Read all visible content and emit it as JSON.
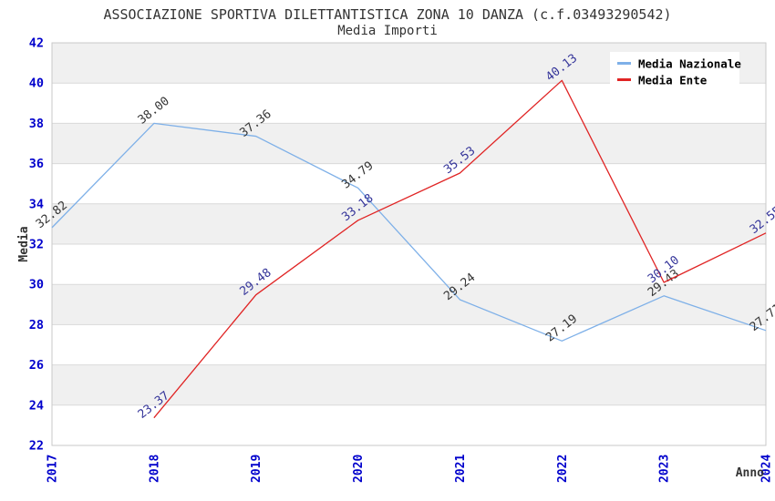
{
  "header": {
    "title": "ASSOCIAZIONE SPORTIVA DILETTANTISTICA ZONA 10 DANZA (c.f.03493290542)",
    "subtitle": "Media Importi"
  },
  "colors": {
    "title_text": "#333333",
    "tick_text": "#0000cc",
    "axis_title_text": "#333333",
    "band_gray": "#f0f0f0",
    "band_white": "#ffffff",
    "gridline": "#d9d9d9",
    "plot_border": "#c9c9c9",
    "legend_bg": "#ffffff"
  },
  "chart_data": {
    "type": "line",
    "title": "ASSOCIAZIONE SPORTIVA DILETTANTISTICA ZONA 10 DANZA (c.f.03493290542)",
    "subtitle": "Media Importi",
    "xlabel": "Anno",
    "ylabel": "Media",
    "x": [
      2017,
      2018,
      2019,
      2020,
      2021,
      2022,
      2023,
      2024
    ],
    "xlim": [
      2017,
      2024
    ],
    "ylim": [
      22,
      42
    ],
    "ytick_step": 2,
    "yticks": [
      22,
      24,
      26,
      28,
      30,
      32,
      34,
      36,
      38,
      40,
      42
    ],
    "grid": "horizontal-bands-alternating",
    "legend_position": "top-right",
    "series": [
      {
        "name": "Media Nazionale",
        "color": "#7eb0e8",
        "label_color": "#333333",
        "x": [
          2017,
          2018,
          2019,
          2020,
          2021,
          2022,
          2023,
          2024
        ],
        "values": [
          32.82,
          38.0,
          37.36,
          34.79,
          29.24,
          27.19,
          29.43,
          27.71
        ],
        "labels": [
          "32.82",
          "38.00",
          "37.36",
          "34.79",
          "29.24",
          "27.19",
          "29.43",
          "27.71"
        ]
      },
      {
        "name": "Media Ente",
        "color": "#e02424",
        "label_color": "#333399",
        "x": [
          2018,
          2019,
          2020,
          2021,
          2022,
          2023,
          2024
        ],
        "values": [
          23.37,
          29.48,
          33.18,
          35.53,
          40.13,
          30.1,
          32.55
        ],
        "labels": [
          "23.37",
          "29.48",
          "33.18",
          "35.53",
          "40.13",
          "30.10",
          "32.55"
        ]
      }
    ]
  }
}
